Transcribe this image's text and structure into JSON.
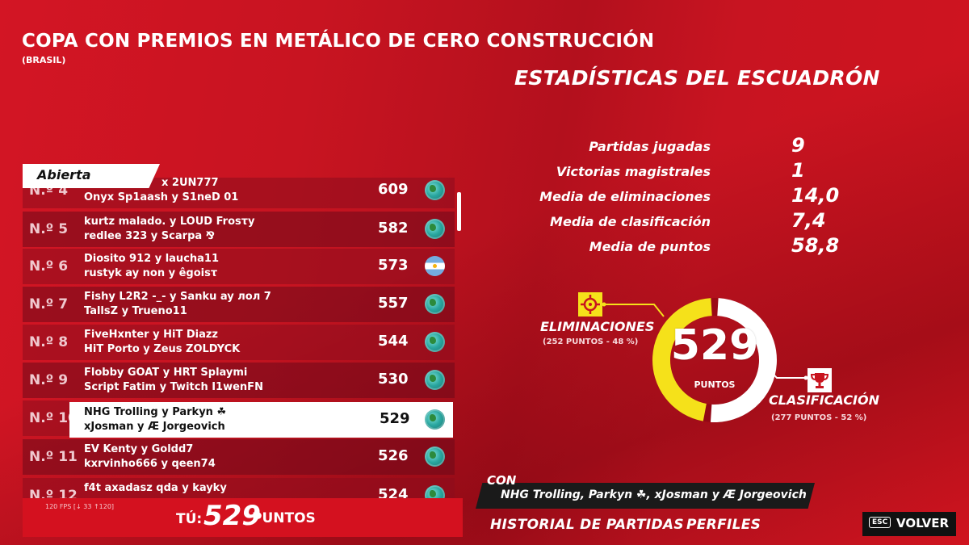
{
  "header": {
    "title": "COPA CON PREMIOS EN METÁLICO DE CERO CONSTRUCCIÓN",
    "subtitle": "(BRASIL)"
  },
  "stats": {
    "title": "ESTADÍSTICAS DEL ESCUADRÓN",
    "rows": [
      {
        "label": "Partidas jugadas",
        "value": "9"
      },
      {
        "label": "Victorias magistrales",
        "value": "1"
      },
      {
        "label": "Media de eliminaciones",
        "value": "14,0"
      },
      {
        "label": "Media de clasificación",
        "value": "7,4"
      },
      {
        "label": "Media de puntos",
        "value": "58,8"
      }
    ]
  },
  "leaderboard": {
    "tab_label": "Abierta",
    "rows": [
      {
        "rank": "N.º 4",
        "line1": "x 2UN777",
        "line2": "Onyx Sp1aash y S1neD 01",
        "score": "609",
        "region": "globe-icon"
      },
      {
        "rank": "N.º 5",
        "line1": "kurtz malado. y LOUD Frosτy",
        "line2": "redlee 323 y Scarpa ⅋",
        "score": "582",
        "region": "globe-icon"
      },
      {
        "rank": "N.º 6",
        "line1": "Diosito 912 y laucha11",
        "line2": "rustyk ay non y êgoisτ",
        "score": "573",
        "region": "argentina-flag-icon"
      },
      {
        "rank": "N.º 7",
        "line1": "Fishy L2R2 -_- y Sanku ay лол 7",
        "line2": "TallsZ y Trueno11",
        "score": "557",
        "region": "globe-icon"
      },
      {
        "rank": "N.º 8",
        "line1": "FiveHxnter y HiT Diazz",
        "line2": "HiT Porto y Zeus ZOLDYCK",
        "score": "544",
        "region": "globe-icon"
      },
      {
        "rank": "N.º 9",
        "line1": "Flobby GOAT y HRT Splaymi",
        "line2": "Script Fatim y Twitch I1wenFN",
        "score": "530",
        "region": "globe-icon"
      },
      {
        "rank": "N.º 10",
        "line1": "NHG Trolling y Parkyn ☘",
        "line2": "xJosman y Æ Jorgeovich",
        "score": "529",
        "region": "globe-icon"
      },
      {
        "rank": "N.º 11",
        "line1": "EV Kenty y Goldd7",
        "line2": "kxrvinho666 y qeen74",
        "score": "526",
        "region": "globe-icon"
      },
      {
        "rank": "N.º 12",
        "line1": "f4t axadasz qda y kayky",
        "line2": "",
        "score": "524",
        "region": "globe-icon"
      }
    ],
    "highlight_index": 6
  },
  "you": {
    "fps_text": "120 FPS [↓ 33 ↑120]",
    "label": "TÚ:",
    "score": "529",
    "unit": "PUNTOS"
  },
  "ring": {
    "total": "529",
    "caption": "PUNTOS",
    "eliminations_fraction": 0.48,
    "eliminations_color": "#f5e11a",
    "placement_color": "#ffffff",
    "eliminations": {
      "label": "ELIMINACIONES",
      "sub": "(252 PUNTOS - 48 %)"
    },
    "placement": {
      "label": "CLASIFICACIÓN",
      "sub": "(277 PUNTOS - 52 %)"
    }
  },
  "squad": {
    "con_label": "CON",
    "members": "NHG Trolling, Parkyn ☘, xJosman y Æ Jorgeovich"
  },
  "nav": {
    "history": "HISTORIAL DE PARTIDAS",
    "profiles": "PERFILES",
    "esc_key": "ESC",
    "back": "VOLVER"
  }
}
